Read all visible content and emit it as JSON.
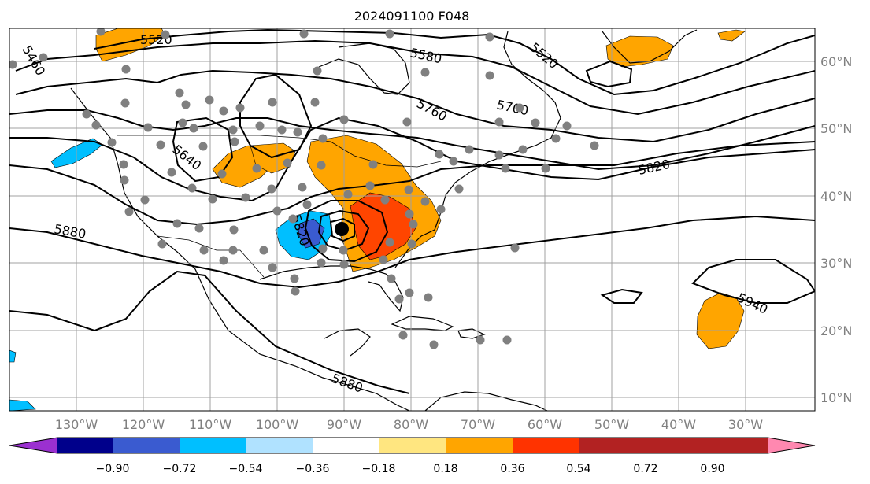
{
  "title": "2024091100 F048",
  "axes": {
    "lon_labels": [
      "130°W",
      "120°W",
      "110°W",
      "100°W",
      "90°W",
      "80°W",
      "70°W",
      "60°W",
      "50°W",
      "40°W",
      "30°W"
    ],
    "lat_labels": [
      "60°N",
      "50°N",
      "40°N",
      "30°N",
      "20°N",
      "10°N"
    ],
    "lon_values": [
      -130,
      -120,
      -110,
      -100,
      -90,
      -80,
      -70,
      -60,
      -50,
      -40,
      -30
    ],
    "lat_values": [
      60,
      50,
      40,
      30,
      20,
      10
    ],
    "lon_range": [
      -140,
      -20
    ],
    "lat_range": [
      8,
      65
    ],
    "grid": true
  },
  "colorbar": {
    "tick_labels": [
      "−0.90",
      "−0.72",
      "−0.54",
      "−0.36",
      "−0.18",
      "0.18",
      "0.36",
      "0.54",
      "0.72",
      "0.90"
    ],
    "bounds": [
      -0.9,
      -0.72,
      -0.54,
      -0.36,
      -0.18,
      0.18,
      0.36,
      0.54,
      0.72,
      0.9
    ],
    "colors": [
      "#9b30d0",
      "#00008b",
      "#3a5bd0",
      "#00bfff",
      "#b0e2ff",
      "#ffffff",
      "#ffe680",
      "#ffa500",
      "#ff3300",
      "#b22222",
      "#ff88b0"
    ],
    "extend": "both"
  },
  "contour_labels": [
    "5520",
    "5580",
    "5520",
    "5460",
    "5640",
    "5760",
    "5700",
    "5820",
    "5820",
    "5880",
    "5880",
    "5940"
  ],
  "colors": {
    "land_outline": "#000000",
    "grid": "#a0a0a0",
    "stations": "#808080",
    "center_marker": "#000000"
  }
}
